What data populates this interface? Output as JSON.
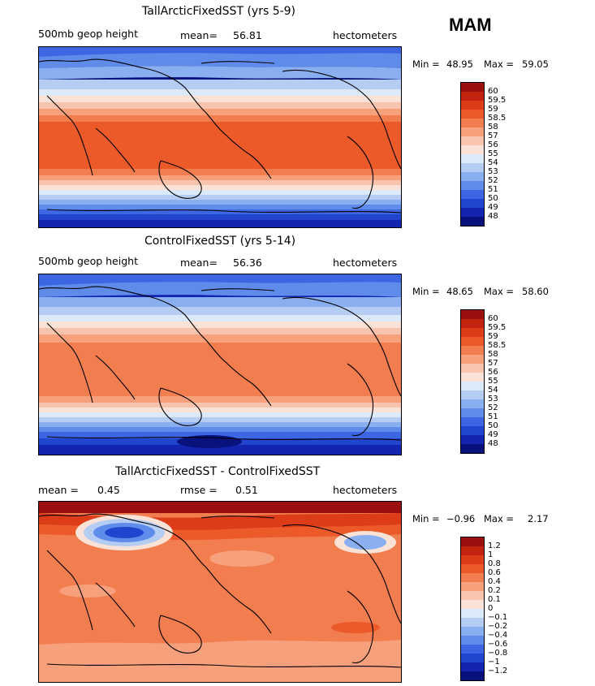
{
  "season": "MAM",
  "panels": [
    {
      "title": "TallArcticFixedSST (yrs 5-9)",
      "left_label": "500mb geop height",
      "mid_label": "mean=",
      "mid_value": "56.81",
      "units": "hectometers",
      "min_label": "Min =",
      "min_value": "48.95",
      "max_label": "Max =",
      "max_value": "59.05",
      "map_kind": "field",
      "colorbar_labels": [
        "60",
        "59.5",
        "59",
        "58.5",
        "58",
        "57",
        "56",
        "55",
        "54",
        "53",
        "52",
        "51",
        "50",
        "49",
        "48"
      ],
      "colorbar_colors": [
        "#9b0f0f",
        "#c1230f",
        "#dc3c17",
        "#ec5a2a",
        "#f27d4f",
        "#f6a07c",
        "#f9c4ad",
        "#fbe2d6",
        "#dce9f8",
        "#b6cdf3",
        "#8aaff0",
        "#5f8bea",
        "#3d67e2",
        "#2245cf",
        "#1325b0",
        "#08117c"
      ]
    },
    {
      "title": "ControlFixedSST (yrs 5-14)",
      "left_label": "500mb geop height",
      "mid_label": "mean=",
      "mid_value": "56.36",
      "units": "hectometers",
      "min_label": "Min =",
      "min_value": "48.65",
      "max_label": "Max =",
      "max_value": "58.60",
      "map_kind": "field",
      "colorbar_labels": [
        "60",
        "59.5",
        "59",
        "58.5",
        "58",
        "57",
        "56",
        "55",
        "54",
        "53",
        "52",
        "51",
        "50",
        "49",
        "48"
      ],
      "colorbar_colors": [
        "#9b0f0f",
        "#c1230f",
        "#dc3c17",
        "#ec5a2a",
        "#f27d4f",
        "#f6a07c",
        "#f9c4ad",
        "#fbe2d6",
        "#dce9f8",
        "#b6cdf3",
        "#8aaff0",
        "#5f8bea",
        "#3d67e2",
        "#2245cf",
        "#1325b0",
        "#08117c"
      ]
    },
    {
      "title": "TallArcticFixedSST - ControlFixedSST",
      "left_label": "mean =",
      "left_value": "0.45",
      "mid_label": "rmse =",
      "mid_value": "0.51",
      "units": "hectometers",
      "min_label": "Min =",
      "min_value": "−0.96",
      "max_label": "Max =",
      "max_value": "2.17",
      "map_kind": "diff",
      "colorbar_labels": [
        "1.2",
        "1",
        "0.8",
        "0.6",
        "0.4",
        "0.2",
        "0.1",
        "0",
        "−0.1",
        "−0.2",
        "−0.4",
        "−0.6",
        "−0.8",
        "−1",
        "−1.2"
      ],
      "colorbar_colors": [
        "#9b0f0f",
        "#c1230f",
        "#dc3c17",
        "#ec5a2a",
        "#f27d4f",
        "#f6a07c",
        "#f9c4ad",
        "#fbe2d6",
        "#dce9f8",
        "#b6cdf3",
        "#8aaff0",
        "#5f8bea",
        "#3d67e2",
        "#2245cf",
        "#1325b0",
        "#08117c"
      ]
    }
  ]
}
